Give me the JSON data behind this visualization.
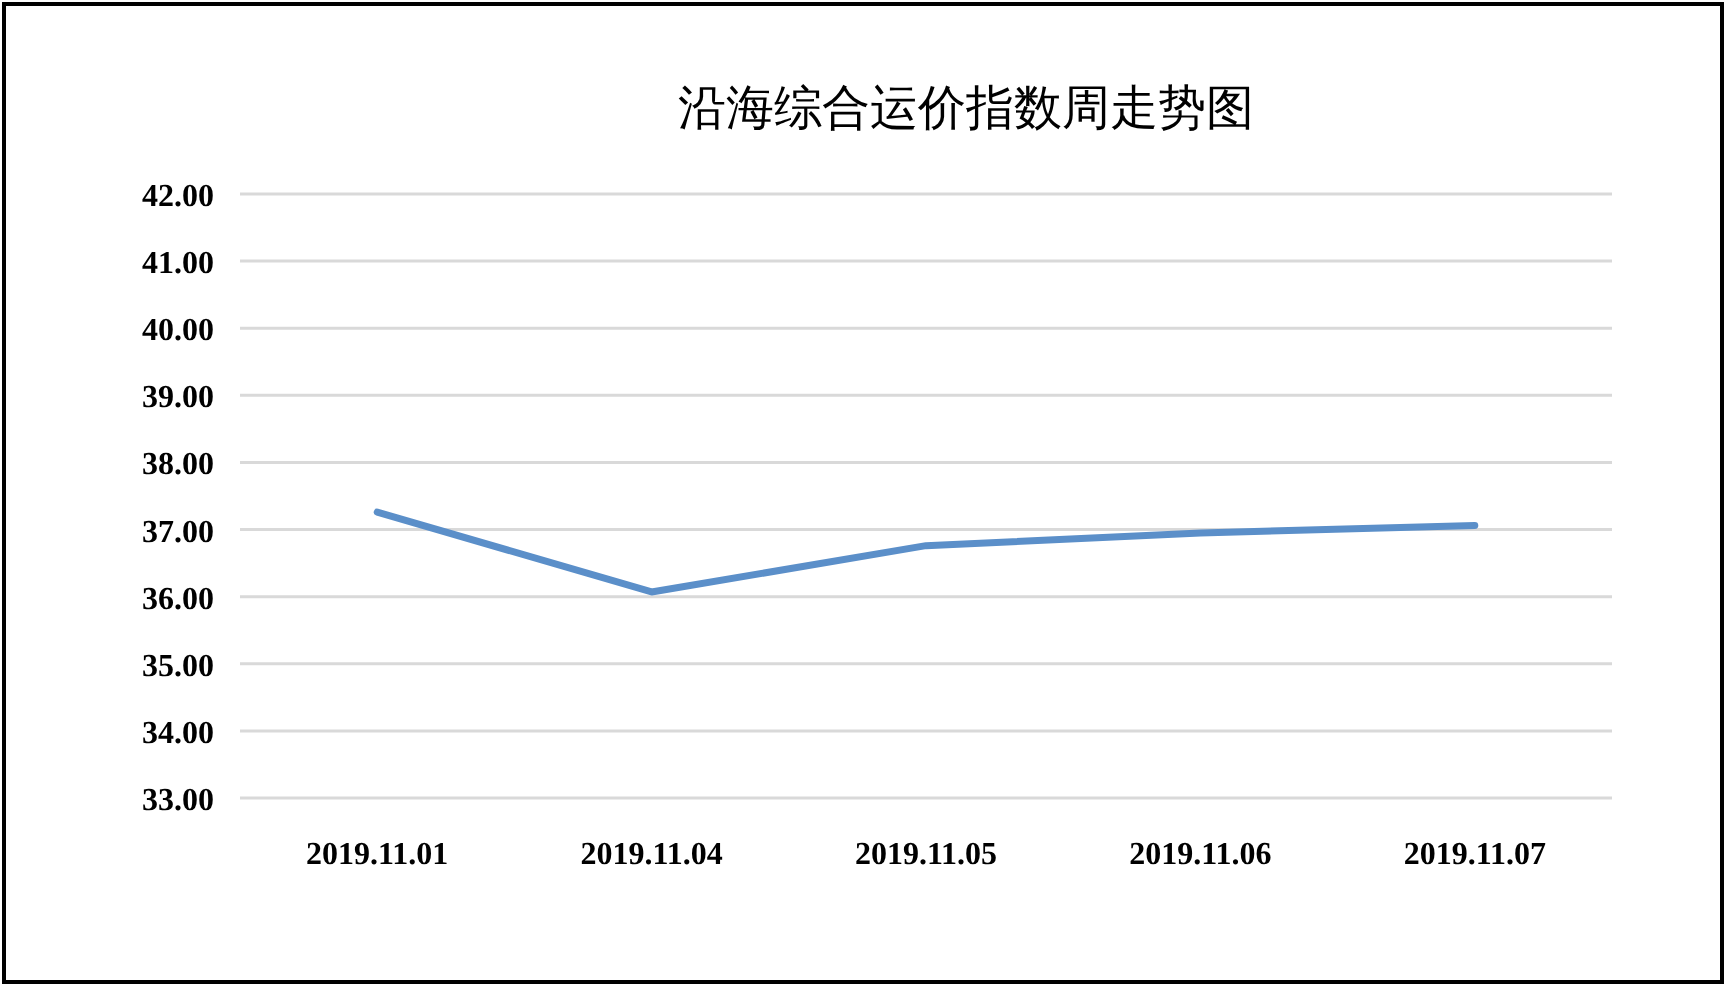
{
  "chart_data": {
    "type": "line",
    "title": "沿海综合运价指数周走势图",
    "categories": [
      "2019.11.01",
      "2019.11.04",
      "2019.11.05",
      "2019.11.06",
      "2019.11.07"
    ],
    "series": [
      {
        "color": "#5b8fc9",
        "values": [
          37.26,
          36.07,
          36.76,
          36.95,
          37.06
        ]
      }
    ],
    "ylim": [
      33,
      42
    ],
    "yticks": [
      {
        "value": 33,
        "label": "33.00"
      },
      {
        "value": 34,
        "label": "34.00"
      },
      {
        "value": 35,
        "label": "35.00"
      },
      {
        "value": 36,
        "label": "36.00"
      },
      {
        "value": 37,
        "label": "37.00"
      },
      {
        "value": 38,
        "label": "38.00"
      },
      {
        "value": 39,
        "label": "39.00"
      },
      {
        "value": 40,
        "label": "40.00"
      },
      {
        "value": 41,
        "label": "41.00"
      },
      {
        "value": 42,
        "label": "42.00"
      }
    ],
    "grid": "y",
    "marker": "none",
    "line_style": "solid"
  }
}
